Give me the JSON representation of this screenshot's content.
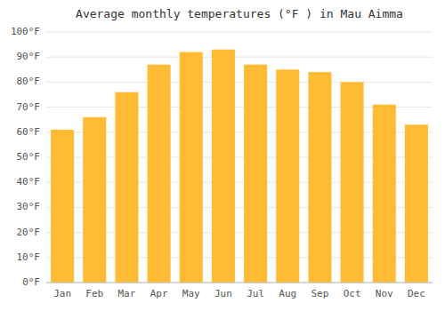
{
  "chart_data": {
    "type": "bar",
    "title": "Average monthly temperatures (°F ) in Mau Aimma",
    "categories": [
      "Jan",
      "Feb",
      "Mar",
      "Apr",
      "May",
      "Jun",
      "Jul",
      "Aug",
      "Sep",
      "Oct",
      "Nov",
      "Dec"
    ],
    "values": [
      61,
      66,
      76,
      87,
      92,
      93,
      87,
      85,
      84,
      80,
      71,
      63
    ],
    "color": "#FFBB33",
    "ylim": [
      0,
      100
    ],
    "yticks": [
      {
        "value": 0,
        "label": "0°F"
      },
      {
        "value": 10,
        "label": "10°F"
      },
      {
        "value": 20,
        "label": "20°F"
      },
      {
        "value": 30,
        "label": "30°F"
      },
      {
        "value": 40,
        "label": "40°F"
      },
      {
        "value": 50,
        "label": "50°F"
      },
      {
        "value": 60,
        "label": "60°F"
      },
      {
        "value": 70,
        "label": "70°F"
      },
      {
        "value": 80,
        "label": "80°F"
      },
      {
        "value": 90,
        "label": "90°F"
      },
      {
        "value": 100,
        "label": "100°F"
      }
    ],
    "grid": true
  }
}
